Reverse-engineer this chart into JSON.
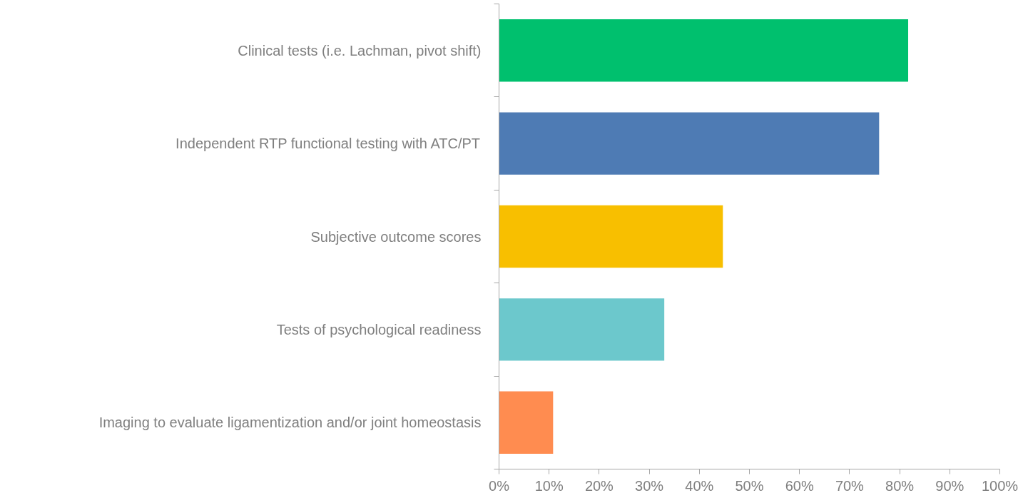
{
  "chart_data": {
    "type": "bar",
    "orientation": "horizontal",
    "categories": [
      "Clinical tests (i.e. Lachman, pivot shift)",
      "Independent RTP functional testing with ATC/PT",
      "Subjective outcome scores",
      "Tests of psychological readiness",
      "Imaging to evaluate ligamentization and/or joint homeostasis"
    ],
    "values": [
      81.7,
      75.9,
      44.7,
      33.0,
      10.8
    ],
    "colors": [
      "#00c06e",
      "#4e7bb4",
      "#f8bf00",
      "#6cc8cc",
      "#ff8c50"
    ],
    "xlim": [
      0,
      100
    ],
    "xticks": [
      {
        "value": 0,
        "label": "0%"
      },
      {
        "value": 10,
        "label": "10%"
      },
      {
        "value": 20,
        "label": "20%"
      },
      {
        "value": 30,
        "label": "30%"
      },
      {
        "value": 40,
        "label": "40%"
      },
      {
        "value": 50,
        "label": "50%"
      },
      {
        "value": 60,
        "label": "60%"
      },
      {
        "value": 70,
        "label": "70%"
      },
      {
        "value": 80,
        "label": "80%"
      },
      {
        "value": 90,
        "label": "90%"
      },
      {
        "value": 100,
        "label": "100%"
      }
    ],
    "grid": false
  }
}
